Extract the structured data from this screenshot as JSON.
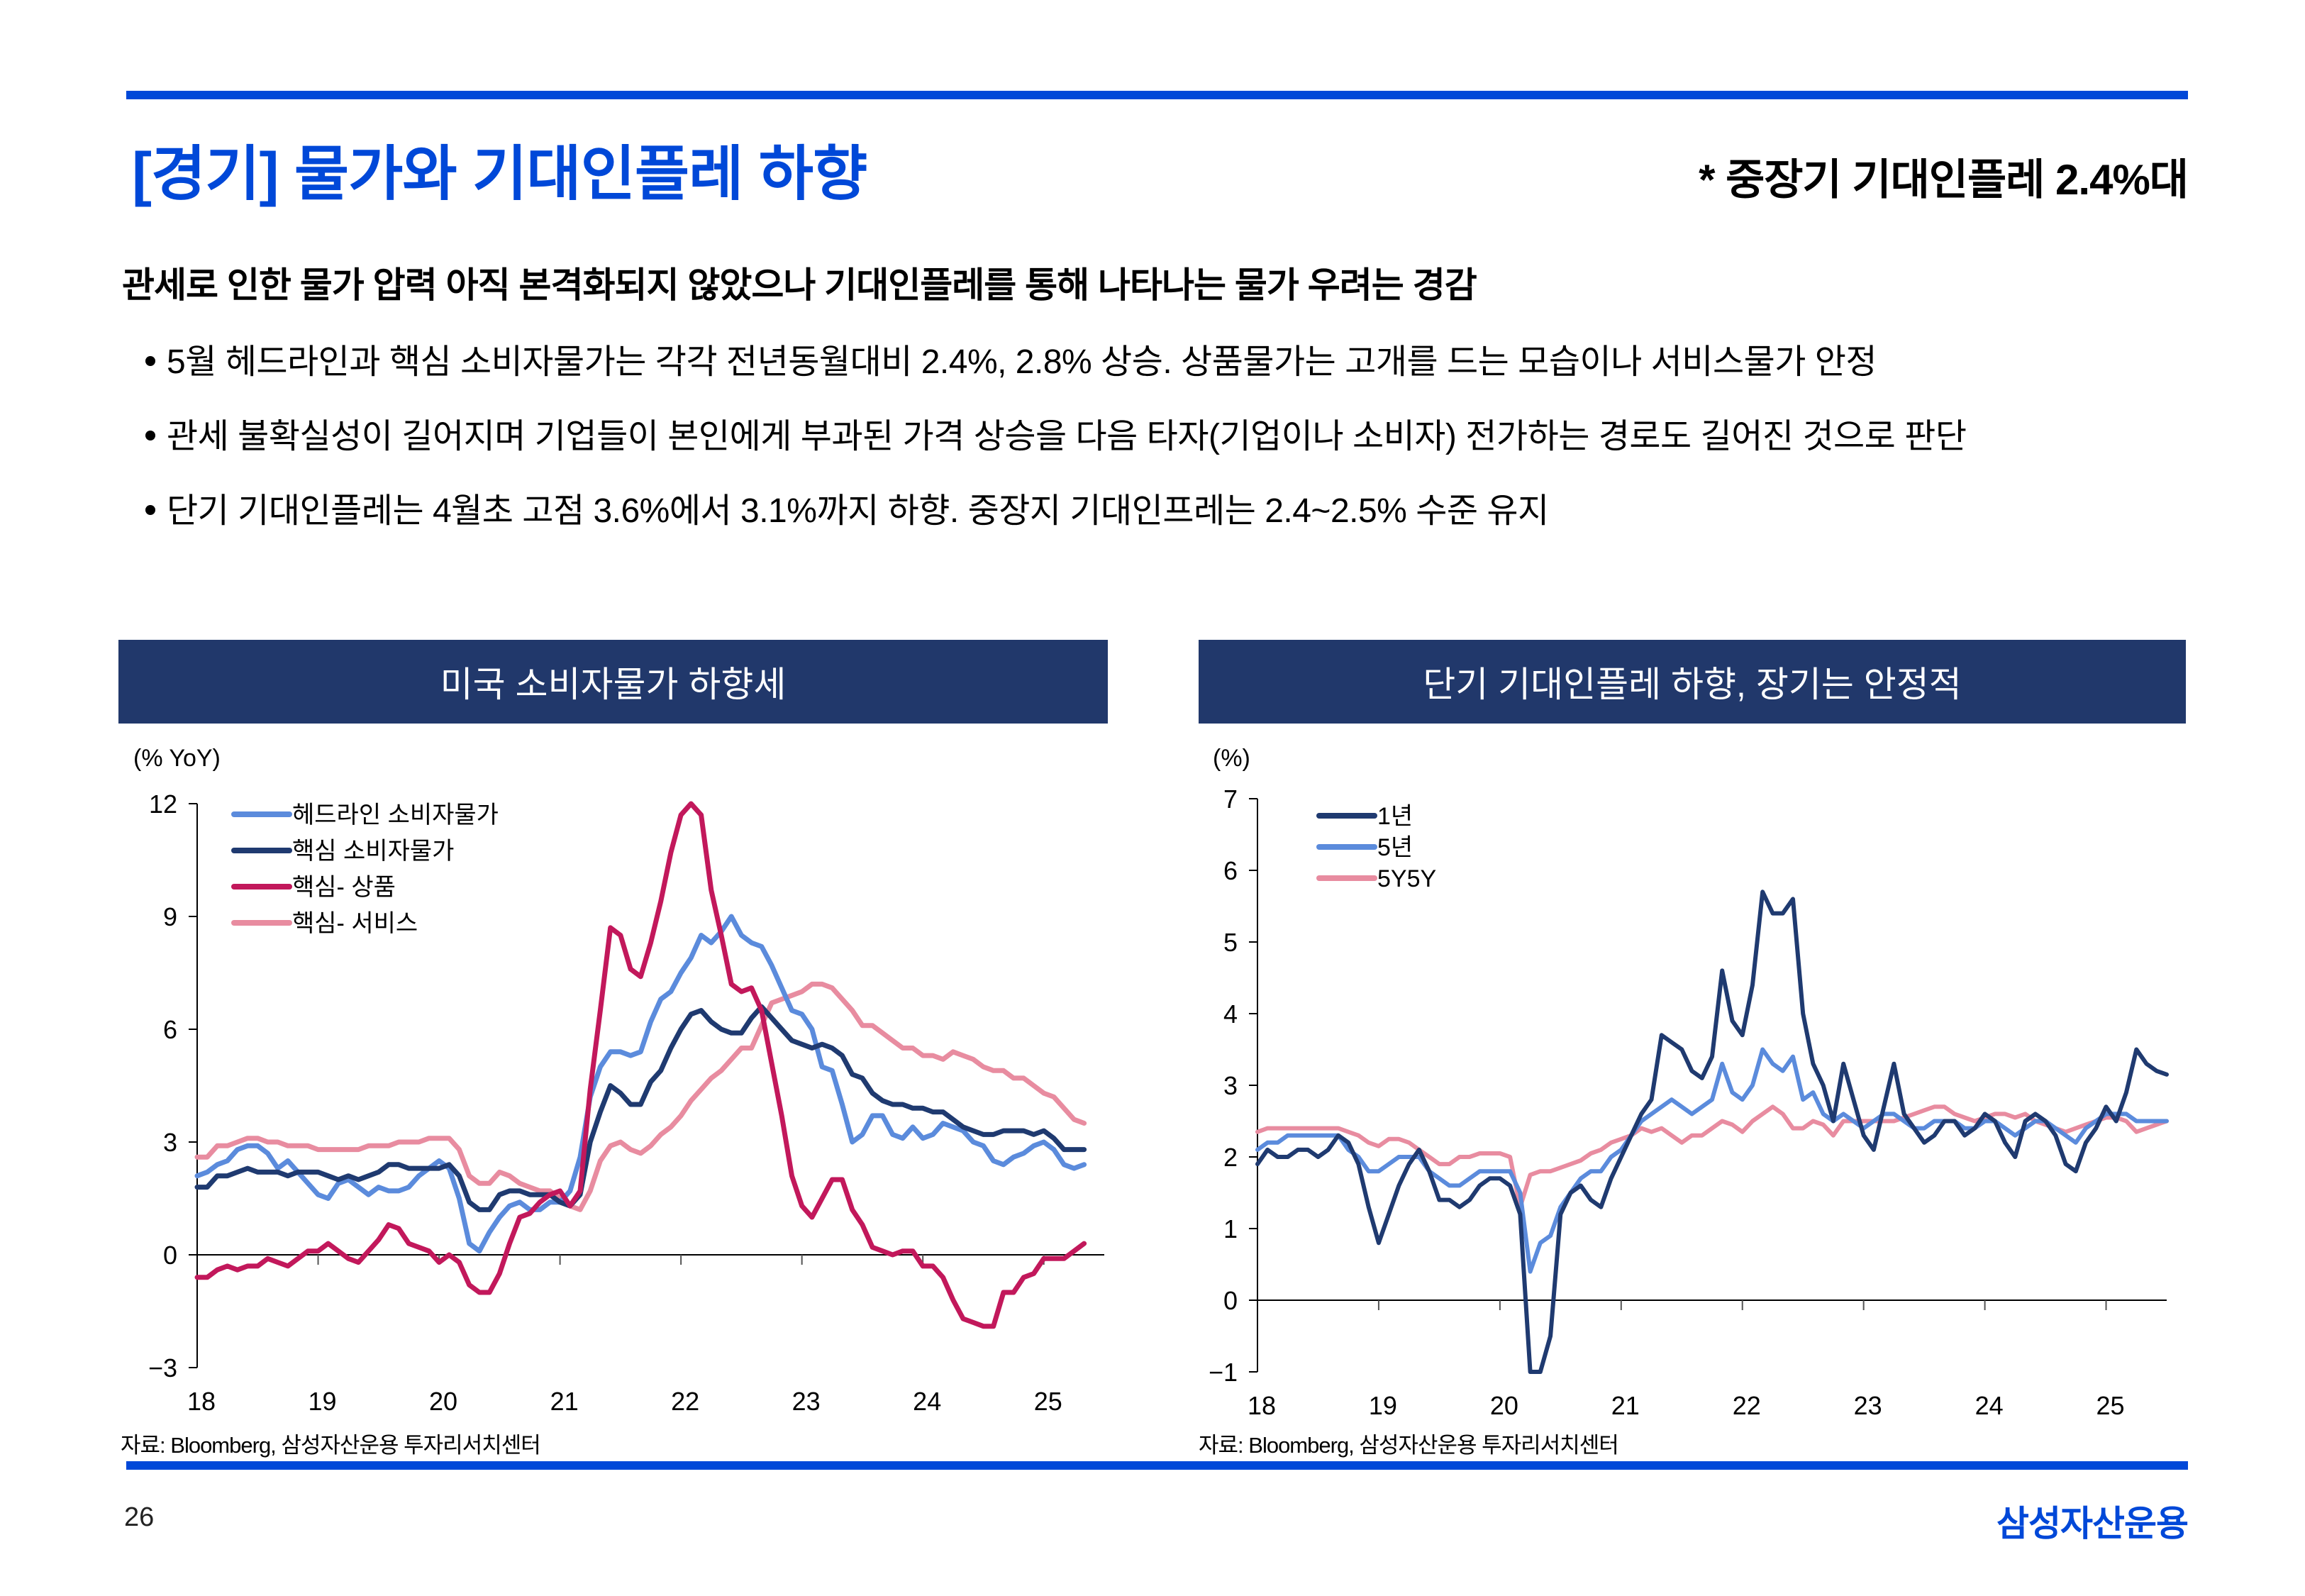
{
  "header": {
    "title": "[경기] 물가와 기대인플레 하향",
    "subtitle_right": "* 중장기 기대인플레 2.4%대",
    "headline": "관세로 인한 물가 압력 아직 본격화되지 않았으나 기대인플레를 통해 나타나는 물가 우려는 경감",
    "bullets": [
      "5월 헤드라인과 핵심 소비자물가는 각각 전년동월대비 2.4%, 2.8% 상승. 상품물가는 고개를 드는 모습이나 서비스물가 안정",
      "관세 불확실성이 길어지며 기업들이 본인에게 부과된 가격 상승을 다음 타자(기업이나 소비자) 전가하는 경로도 길어진 것으로 판단",
      "단기 기대인플레는 4월초 고점 3.6%에서 3.1%까지 하향. 중장지 기대인프레는 2.4~2.5% 수준 유지"
    ]
  },
  "colors": {
    "brand_blue": "#0048D8",
    "header_navy": "#21386B"
  },
  "footer": {
    "page_number": "26",
    "brand": "삼성자산운용"
  },
  "chart_data": [
    {
      "type": "line",
      "title": "미국 소비자물가 하향세",
      "ylabel": "(% YoY)",
      "xlabel": "",
      "source": "자료: Bloomberg, 삼성자산운용 투자리서치센터",
      "x_start": "2018-01",
      "x_frequency": "monthly",
      "xlim": [
        2018.0,
        2025.5
      ],
      "ylim": [
        -3,
        12
      ],
      "yticks": [
        -3,
        0,
        3,
        6,
        9,
        12
      ],
      "xtick_labels": [
        "18",
        "19",
        "20",
        "21",
        "22",
        "23",
        "24",
        "25"
      ],
      "legend_position": "top-left",
      "series": [
        {
          "name": "헤드라인 소비자물가",
          "color": "#5B8BDC",
          "values": [
            2.1,
            2.2,
            2.4,
            2.5,
            2.8,
            2.9,
            2.9,
            2.7,
            2.3,
            2.5,
            2.2,
            1.9,
            1.6,
            1.5,
            1.9,
            2.0,
            1.8,
            1.6,
            1.8,
            1.7,
            1.7,
            1.8,
            2.1,
            2.3,
            2.5,
            2.3,
            1.5,
            0.3,
            0.1,
            0.6,
            1.0,
            1.3,
            1.4,
            1.2,
            1.2,
            1.4,
            1.4,
            1.7,
            2.6,
            4.2,
            5.0,
            5.4,
            5.4,
            5.3,
            5.4,
            6.2,
            6.8,
            7.0,
            7.5,
            7.9,
            8.5,
            8.3,
            8.6,
            9.0,
            8.5,
            8.3,
            8.2,
            7.7,
            7.1,
            6.5,
            6.4,
            6.0,
            5.0,
            4.9,
            4.0,
            3.0,
            3.2,
            3.7,
            3.7,
            3.2,
            3.1,
            3.4,
            3.1,
            3.2,
            3.5,
            3.4,
            3.3,
            3.0,
            2.9,
            2.5,
            2.4,
            2.6,
            2.7,
            2.9,
            3.0,
            2.8,
            2.4,
            2.3,
            2.4
          ]
        },
        {
          "name": "핵심 소비자물가",
          "color": "#1F3A70",
          "values": [
            1.8,
            1.8,
            2.1,
            2.1,
            2.2,
            2.3,
            2.2,
            2.2,
            2.2,
            2.1,
            2.2,
            2.2,
            2.2,
            2.1,
            2.0,
            2.1,
            2.0,
            2.1,
            2.2,
            2.4,
            2.4,
            2.3,
            2.3,
            2.3,
            2.3,
            2.4,
            2.1,
            1.4,
            1.2,
            1.2,
            1.6,
            1.7,
            1.7,
            1.6,
            1.6,
            1.6,
            1.4,
            1.3,
            1.6,
            3.0,
            3.8,
            4.5,
            4.3,
            4.0,
            4.0,
            4.6,
            4.9,
            5.5,
            6.0,
            6.4,
            6.5,
            6.2,
            6.0,
            5.9,
            5.9,
            6.3,
            6.6,
            6.3,
            6.0,
            5.7,
            5.6,
            5.5,
            5.6,
            5.5,
            5.3,
            4.8,
            4.7,
            4.3,
            4.1,
            4.0,
            4.0,
            3.9,
            3.9,
            3.8,
            3.8,
            3.6,
            3.4,
            3.3,
            3.2,
            3.2,
            3.3,
            3.3,
            3.3,
            3.2,
            3.3,
            3.1,
            2.8,
            2.8,
            2.8
          ]
        },
        {
          "name": "핵심- 상품",
          "color": "#C2185B",
          "values": [
            -0.6,
            -0.6,
            -0.4,
            -0.3,
            -0.4,
            -0.3,
            -0.3,
            -0.1,
            -0.2,
            -0.3,
            -0.1,
            0.1,
            0.1,
            0.3,
            0.1,
            -0.1,
            -0.2,
            0.1,
            0.4,
            0.8,
            0.7,
            0.3,
            0.2,
            0.1,
            -0.2,
            0.0,
            -0.2,
            -0.8,
            -1.0,
            -1.0,
            -0.5,
            0.3,
            1.0,
            1.1,
            1.4,
            1.6,
            1.7,
            1.3,
            1.7,
            4.4,
            6.5,
            8.7,
            8.5,
            7.6,
            7.4,
            8.3,
            9.4,
            10.7,
            11.7,
            12.3,
            11.7,
            9.7,
            8.5,
            7.2,
            7.0,
            7.1,
            6.5,
            5.1,
            3.7,
            2.1,
            1.3,
            1.0,
            1.5,
            2.0,
            2.0,
            1.2,
            0.8,
            0.2,
            0.1,
            0.0,
            0.1,
            0.1,
            -0.3,
            -0.3,
            -0.6,
            -1.2,
            -1.7,
            -1.8,
            -1.9,
            -1.9,
            -1.0,
            -1.0,
            -0.6,
            -0.5,
            -0.1,
            -0.1,
            -0.1,
            0.1,
            0.3
          ]
        },
        {
          "name": "핵심- 서비스",
          "color": "#E88CA0",
          "values": [
            2.6,
            2.6,
            2.9,
            2.9,
            3.0,
            3.1,
            3.1,
            3.0,
            3.0,
            2.9,
            2.9,
            2.9,
            2.8,
            2.8,
            2.8,
            2.8,
            2.8,
            2.9,
            2.9,
            2.9,
            3.0,
            3.0,
            3.0,
            3.1,
            3.1,
            3.1,
            2.8,
            2.1,
            1.9,
            1.9,
            2.2,
            2.1,
            1.9,
            1.8,
            1.7,
            1.7,
            1.5,
            1.3,
            1.2,
            1.7,
            2.5,
            2.9,
            3.0,
            2.8,
            2.7,
            2.9,
            3.2,
            3.4,
            3.7,
            4.1,
            4.4,
            4.7,
            4.9,
            5.2,
            5.5,
            5.5,
            6.1,
            6.7,
            6.8,
            6.9,
            7.0,
            7.2,
            7.2,
            7.1,
            6.8,
            6.5,
            6.1,
            6.1,
            5.9,
            5.7,
            5.5,
            5.5,
            5.3,
            5.3,
            5.2,
            5.4,
            5.3,
            5.2,
            5.0,
            4.9,
            4.9,
            4.7,
            4.7,
            4.5,
            4.3,
            4.2,
            3.9,
            3.6,
            3.5
          ]
        }
      ]
    },
    {
      "type": "line",
      "title": "단기 기대인플레 하향, 장기는 안정적",
      "ylabel": "(%)",
      "xlabel": "",
      "source": "자료: Bloomberg, 삼성자산운용 투자리서치센터",
      "x_start": "2018-01",
      "x_frequency": "monthly",
      "xlim": [
        2018.0,
        2025.5
      ],
      "ylim": [
        -1,
        7
      ],
      "yticks": [
        -1,
        0,
        1,
        2,
        3,
        4,
        5,
        6,
        7
      ],
      "xtick_labels": [
        "18",
        "19",
        "20",
        "21",
        "22",
        "23",
        "24",
        "25"
      ],
      "legend_position": "top-left",
      "series": [
        {
          "name": "1년",
          "color": "#1F3A70",
          "values": [
            1.9,
            2.1,
            2.0,
            2.0,
            2.1,
            2.1,
            2.0,
            2.1,
            2.3,
            2.2,
            1.9,
            1.3,
            0.8,
            1.2,
            1.6,
            1.9,
            2.1,
            1.8,
            1.4,
            1.4,
            1.3,
            1.4,
            1.6,
            1.7,
            1.7,
            1.6,
            1.2,
            -1.0,
            -1.0,
            -0.5,
            1.2,
            1.5,
            1.6,
            1.4,
            1.3,
            1.7,
            2.0,
            2.3,
            2.6,
            2.8,
            3.7,
            3.6,
            3.5,
            3.2,
            3.1,
            3.4,
            4.6,
            3.9,
            3.7,
            4.4,
            5.7,
            5.4,
            5.4,
            5.6,
            4.0,
            3.3,
            3.0,
            2.5,
            3.3,
            2.8,
            2.3,
            2.1,
            2.7,
            3.3,
            2.6,
            2.4,
            2.2,
            2.3,
            2.5,
            2.5,
            2.3,
            2.4,
            2.6,
            2.5,
            2.2,
            2.0,
            2.5,
            2.6,
            2.5,
            2.3,
            1.9,
            1.8,
            2.2,
            2.4,
            2.7,
            2.5,
            2.9,
            3.5,
            3.3,
            3.2,
            3.15
          ]
        },
        {
          "name": "5년",
          "color": "#5B8BDC",
          "values": [
            2.1,
            2.2,
            2.2,
            2.3,
            2.3,
            2.3,
            2.3,
            2.3,
            2.3,
            2.1,
            2.0,
            1.8,
            1.8,
            1.9,
            2.0,
            2.0,
            2.0,
            1.8,
            1.7,
            1.6,
            1.6,
            1.7,
            1.8,
            1.8,
            1.8,
            1.8,
            1.5,
            0.4,
            0.8,
            0.9,
            1.3,
            1.5,
            1.7,
            1.8,
            1.8,
            2.0,
            2.1,
            2.3,
            2.5,
            2.6,
            2.7,
            2.8,
            2.7,
            2.6,
            2.7,
            2.8,
            3.3,
            2.9,
            2.8,
            3.0,
            3.5,
            3.3,
            3.2,
            3.4,
            2.8,
            2.9,
            2.6,
            2.5,
            2.6,
            2.5,
            2.4,
            2.5,
            2.6,
            2.6,
            2.5,
            2.4,
            2.4,
            2.5,
            2.5,
            2.5,
            2.4,
            2.4,
            2.5,
            2.5,
            2.4,
            2.3,
            2.4,
            2.5,
            2.5,
            2.4,
            2.3,
            2.2,
            2.4,
            2.5,
            2.6,
            2.6,
            2.6,
            2.5,
            2.5,
            2.5,
            2.5
          ]
        },
        {
          "name": "5Y5Y",
          "color": "#E88CA0",
          "values": [
            2.35,
            2.4,
            2.4,
            2.4,
            2.4,
            2.4,
            2.4,
            2.4,
            2.4,
            2.35,
            2.3,
            2.2,
            2.15,
            2.25,
            2.25,
            2.2,
            2.1,
            2.0,
            1.9,
            1.9,
            2.0,
            2.0,
            2.05,
            2.05,
            2.05,
            2.0,
            1.3,
            1.75,
            1.8,
            1.8,
            1.85,
            1.9,
            1.95,
            2.05,
            2.1,
            2.2,
            2.25,
            2.3,
            2.4,
            2.35,
            2.4,
            2.3,
            2.2,
            2.3,
            2.3,
            2.4,
            2.5,
            2.45,
            2.35,
            2.5,
            2.6,
            2.7,
            2.6,
            2.4,
            2.4,
            2.5,
            2.45,
            2.3,
            2.5,
            2.5,
            2.5,
            2.5,
            2.5,
            2.5,
            2.55,
            2.6,
            2.65,
            2.7,
            2.7,
            2.6,
            2.55,
            2.5,
            2.55,
            2.6,
            2.6,
            2.55,
            2.6,
            2.5,
            2.45,
            2.4,
            2.35,
            2.4,
            2.45,
            2.5,
            2.55,
            2.55,
            2.5,
            2.35,
            2.4,
            2.45,
            2.5
          ]
        }
      ]
    }
  ]
}
